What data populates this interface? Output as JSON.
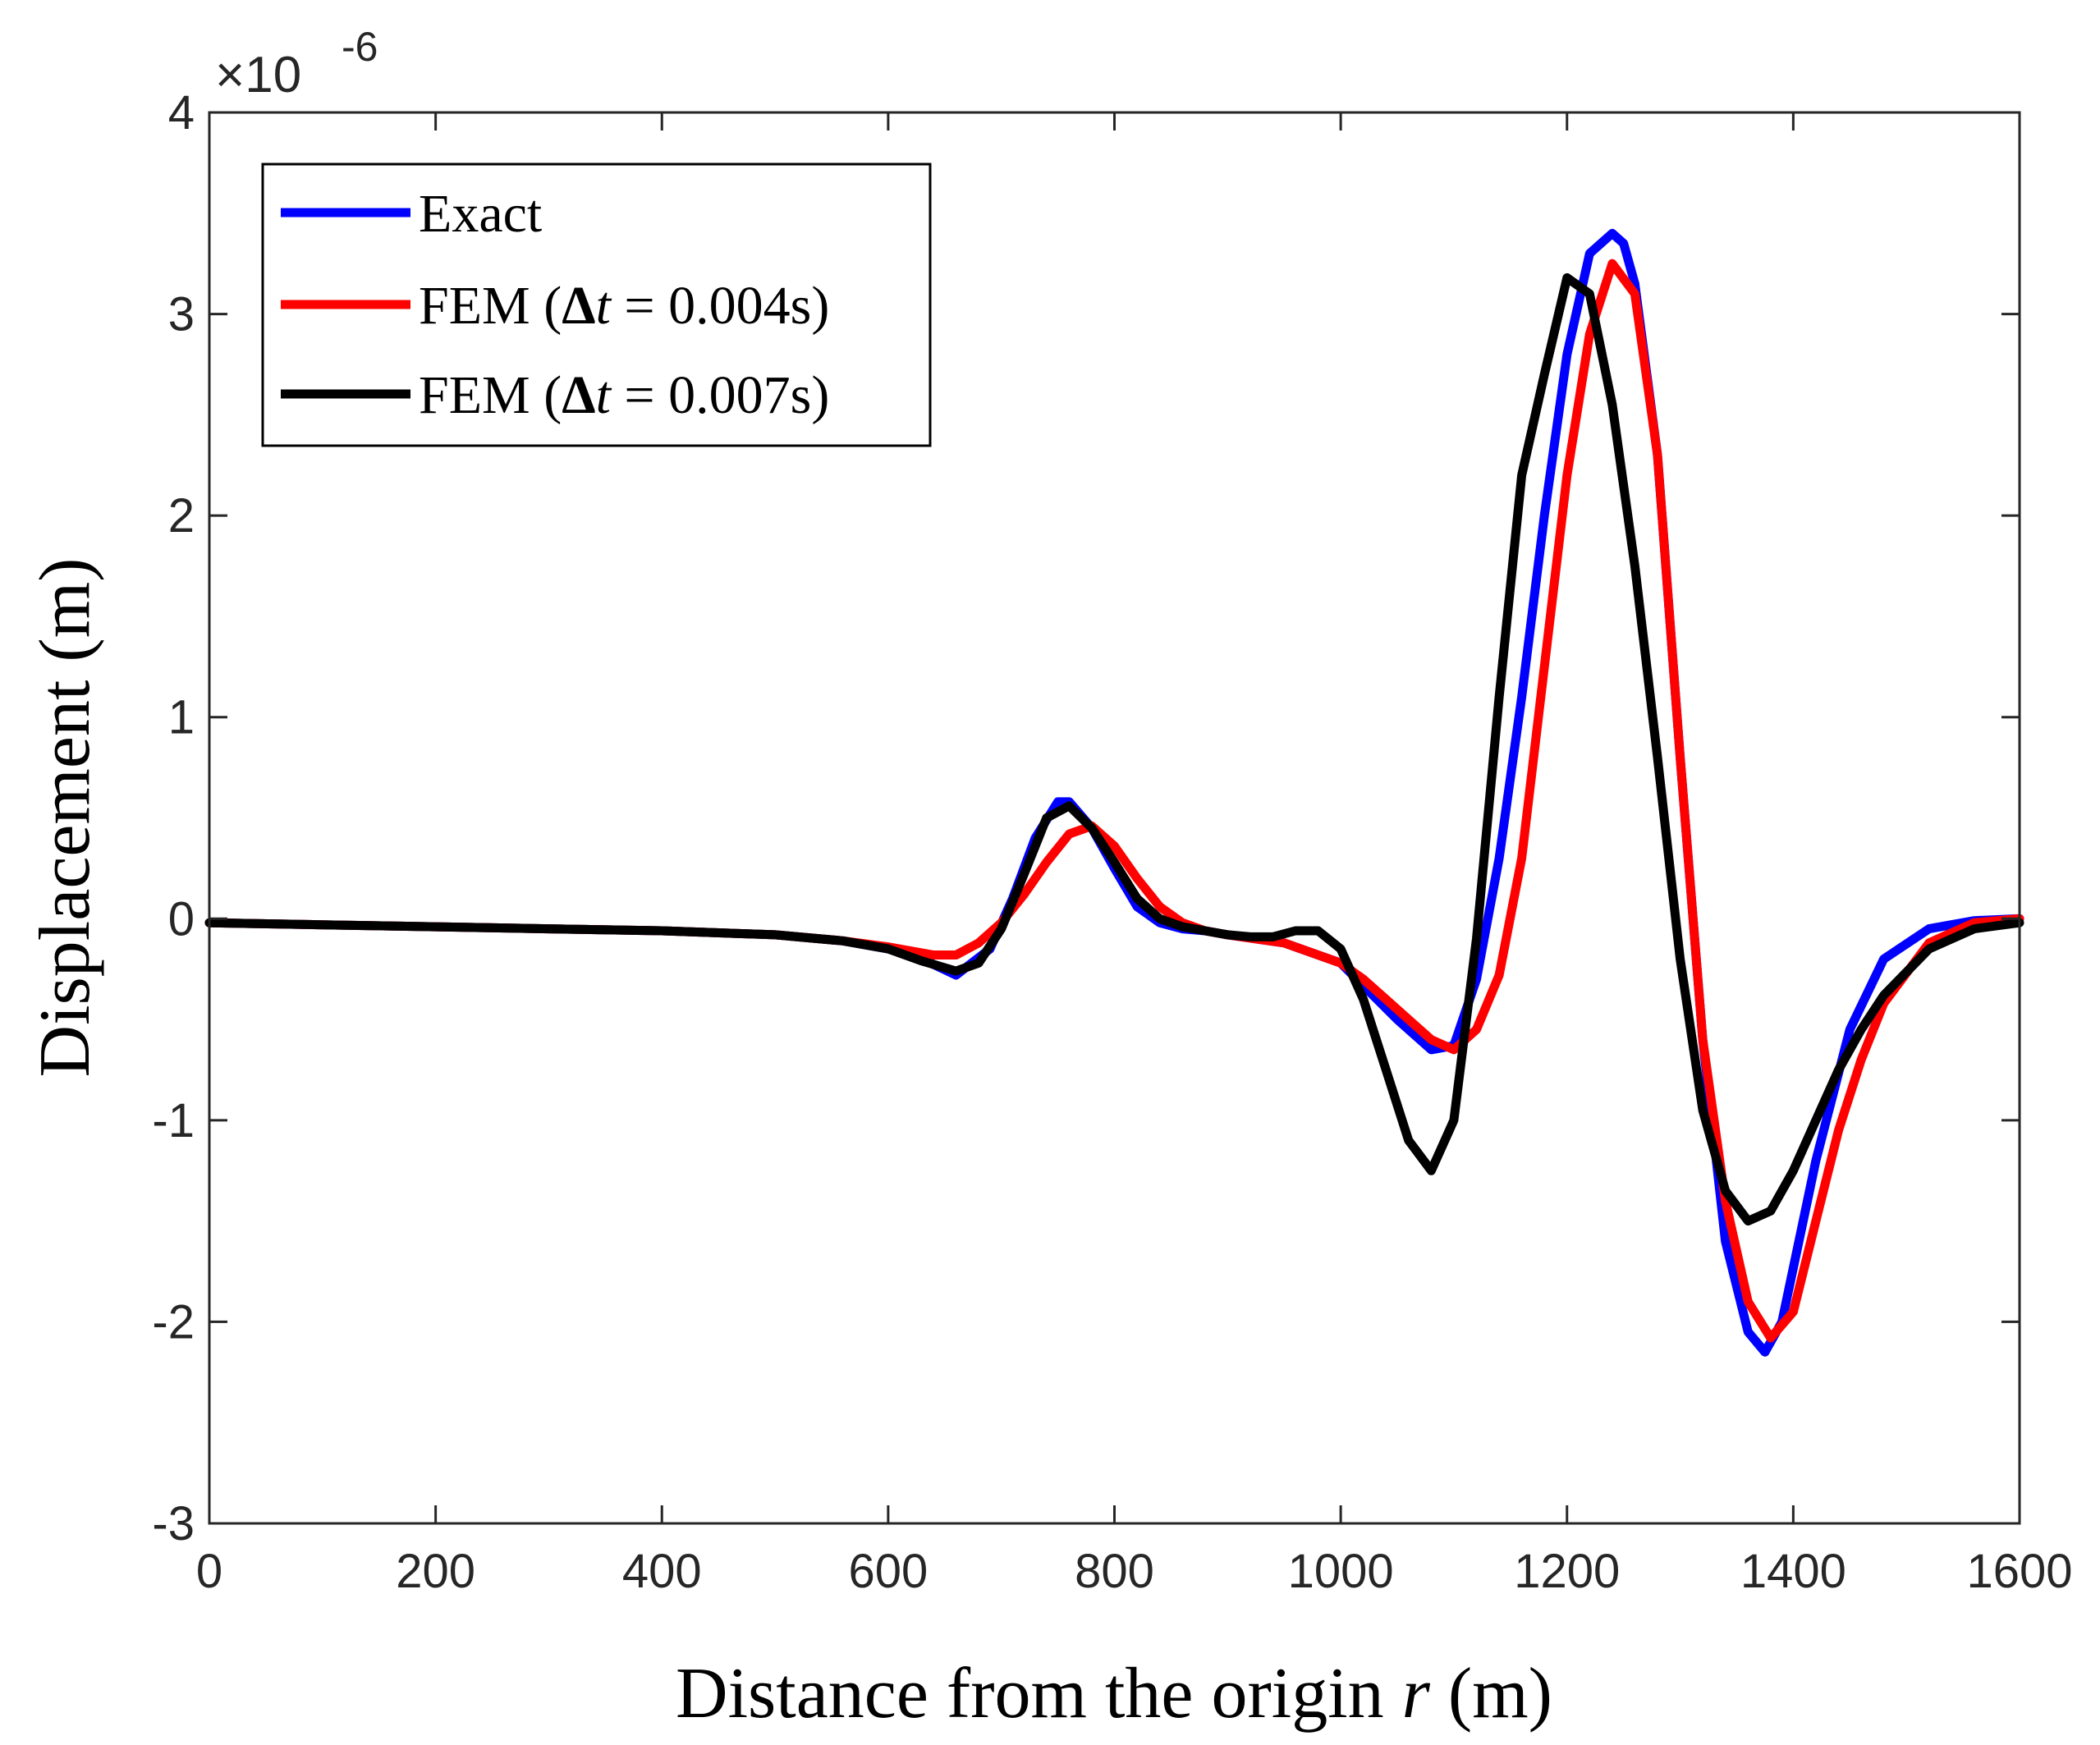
{
  "chart_data": {
    "type": "line",
    "title": "",
    "xlabel": "Distance from the origin r (m)",
    "xlabel_parts": {
      "pre": "Distance from the origin ",
      "var": "r",
      "post": " (m)"
    },
    "ylabel": "Displacement (m)",
    "xlim": [
      0,
      1600
    ],
    "ylim": [
      -3,
      4
    ],
    "xticks": [
      0,
      200,
      400,
      600,
      800,
      1000,
      1200,
      1400,
      1600
    ],
    "yticks": [
      -3,
      -2,
      -1,
      0,
      1,
      2,
      3,
      4
    ],
    "xtick_labels": [
      "0",
      "200",
      "400",
      "600",
      "800",
      "1000",
      "1200",
      "1400",
      "1600"
    ],
    "ytick_labels": [
      "-3",
      "-2",
      "-1",
      "0",
      "1",
      "2",
      "3",
      "4"
    ],
    "y_exponent": {
      "base": "×10",
      "power": "-6"
    },
    "grid": false,
    "legend_position": "top-left",
    "series": [
      {
        "name": "Exact",
        "legend_parts": {
          "pre": "Exact"
        },
        "color": "#0000ff",
        "x": [
          0,
          100,
          200,
          300,
          400,
          500,
          560,
          600,
          630,
          660,
          690,
          710,
          730,
          750,
          760,
          780,
          800,
          820,
          840,
          860,
          880,
          900,
          950,
          1000,
          1050,
          1080,
          1100,
          1120,
          1140,
          1160,
          1180,
          1200,
          1220,
          1240,
          1250,
          1260,
          1280,
          1300,
          1320,
          1340,
          1360,
          1375,
          1390,
          1420,
          1450,
          1480,
          1520,
          1560,
          1600
        ],
        "values": [
          -0.02,
          -0.03,
          -0.04,
          -0.05,
          -0.06,
          -0.08,
          -0.11,
          -0.15,
          -0.2,
          -0.28,
          -0.15,
          0.1,
          0.4,
          0.58,
          0.58,
          0.45,
          0.25,
          0.06,
          -0.02,
          -0.05,
          -0.06,
          -0.08,
          -0.12,
          -0.22,
          -0.5,
          -0.65,
          -0.63,
          -0.3,
          0.3,
          1.1,
          2.0,
          2.8,
          3.3,
          3.4,
          3.35,
          3.15,
          2.3,
          0.8,
          -0.6,
          -1.6,
          -2.05,
          -2.15,
          -2.0,
          -1.2,
          -0.55,
          -0.2,
          -0.05,
          -0.01,
          0.0
        ]
      },
      {
        "name": "FEM (Δt = 0.004s)",
        "legend_parts": {
          "pre": "FEM (",
          "delta": "Δ",
          "var": "t",
          "post": " = 0.004s)"
        },
        "color": "#ff0000",
        "x": [
          0,
          100,
          200,
          300,
          400,
          500,
          560,
          600,
          640,
          660,
          680,
          700,
          720,
          740,
          760,
          780,
          800,
          820,
          840,
          860,
          880,
          900,
          950,
          1000,
          1020,
          1040,
          1060,
          1080,
          1100,
          1120,
          1140,
          1160,
          1180,
          1200,
          1220,
          1240,
          1260,
          1280,
          1300,
          1320,
          1340,
          1360,
          1380,
          1400,
          1420,
          1440,
          1460,
          1480,
          1520,
          1560,
          1600
        ],
        "values": [
          -0.02,
          -0.03,
          -0.04,
          -0.05,
          -0.06,
          -0.08,
          -0.11,
          -0.14,
          -0.18,
          -0.18,
          -0.12,
          -0.02,
          0.12,
          0.28,
          0.42,
          0.46,
          0.36,
          0.2,
          0.06,
          -0.02,
          -0.06,
          -0.08,
          -0.12,
          -0.22,
          -0.3,
          -0.4,
          -0.5,
          -0.6,
          -0.65,
          -0.55,
          -0.28,
          0.3,
          1.25,
          2.2,
          2.9,
          3.25,
          3.1,
          2.3,
          0.8,
          -0.6,
          -1.4,
          -1.9,
          -2.08,
          -1.95,
          -1.5,
          -1.05,
          -0.7,
          -0.42,
          -0.12,
          -0.02,
          0.0
        ]
      },
      {
        "name": "FEM (Δt = 0.007s)",
        "legend_parts": {
          "pre": "FEM (",
          "delta": "Δ",
          "var": "t",
          "post": " = 0.007s)"
        },
        "color": "#000000",
        "x": [
          0,
          100,
          200,
          300,
          400,
          500,
          560,
          600,
          630,
          660,
          680,
          700,
          720,
          740,
          760,
          780,
          800,
          820,
          840,
          860,
          880,
          900,
          920,
          940,
          960,
          980,
          1000,
          1020,
          1040,
          1060,
          1080,
          1100,
          1120,
          1140,
          1160,
          1180,
          1200,
          1220,
          1240,
          1260,
          1280,
          1300,
          1320,
          1340,
          1360,
          1380,
          1400,
          1420,
          1440,
          1460,
          1480,
          1520,
          1560,
          1600
        ],
        "values": [
          -0.02,
          -0.03,
          -0.04,
          -0.05,
          -0.06,
          -0.08,
          -0.11,
          -0.15,
          -0.21,
          -0.26,
          -0.22,
          -0.05,
          0.22,
          0.5,
          0.56,
          0.45,
          0.28,
          0.1,
          0.0,
          -0.04,
          -0.06,
          -0.08,
          -0.09,
          -0.09,
          -0.06,
          -0.06,
          -0.15,
          -0.4,
          -0.75,
          -1.1,
          -1.25,
          -1.0,
          -0.1,
          1.1,
          2.2,
          2.7,
          3.18,
          3.1,
          2.55,
          1.75,
          0.8,
          -0.2,
          -0.95,
          -1.35,
          -1.5,
          -1.45,
          -1.25,
          -1.0,
          -0.75,
          -0.55,
          -0.38,
          -0.15,
          -0.05,
          -0.02
        ]
      }
    ]
  }
}
